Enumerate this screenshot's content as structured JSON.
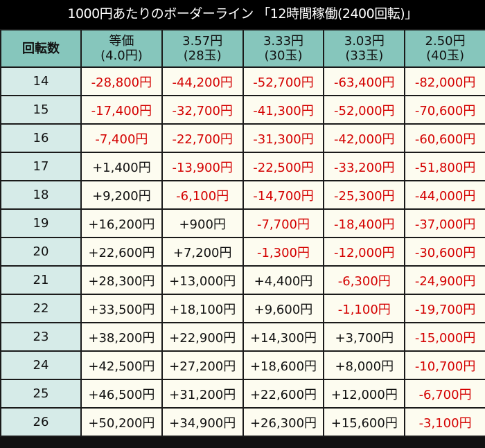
{
  "title": "1000円あたりのボーダーライン 「12時間稼働(2400回転)」",
  "colors": {
    "header_bg": "#86c6bc",
    "row_label_bg": "#d6ebe8",
    "cell_bg": "#fdfcf0",
    "negative": "#d40000",
    "positive": "#111111",
    "title_bg": "#000000"
  },
  "header": {
    "row_label": "回転数",
    "columns": [
      {
        "line1": "等価",
        "line2": "(4.0円)"
      },
      {
        "line1": "3.57円",
        "line2": "(28玉)"
      },
      {
        "line1": "3.33円",
        "line2": "(30玉)"
      },
      {
        "line1": "3.03円",
        "line2": "(33玉)"
      },
      {
        "line1": "2.50円",
        "line2": "(40玉)"
      }
    ]
  },
  "rows": [
    {
      "spins": "14",
      "values": [
        "-28,800円",
        "-44,200円",
        "-52,700円",
        "-63,400円",
        "-82,000円"
      ]
    },
    {
      "spins": "15",
      "values": [
        "-17,400円",
        "-32,700円",
        "-41,300円",
        "-52,000円",
        "-70,600円"
      ]
    },
    {
      "spins": "16",
      "values": [
        "-7,400円",
        "-22,700円",
        "-31,300円",
        "-42,000円",
        "-60,600円"
      ]
    },
    {
      "spins": "17",
      "values": [
        "+1,400円",
        "-13,900円",
        "-22,500円",
        "-33,200円",
        "-51,800円"
      ]
    },
    {
      "spins": "18",
      "values": [
        "+9,200円",
        "-6,100円",
        "-14,700円",
        "-25,300円",
        "-44,000円"
      ]
    },
    {
      "spins": "19",
      "values": [
        "+16,200円",
        "+900円",
        "-7,700円",
        "-18,400円",
        "-37,000円"
      ]
    },
    {
      "spins": "20",
      "values": [
        "+22,600円",
        "+7,200円",
        "-1,300円",
        "-12,000円",
        "-30,600円"
      ]
    },
    {
      "spins": "21",
      "values": [
        "+28,300円",
        "+13,000円",
        "+4,400円",
        "-6,300円",
        "-24,900円"
      ]
    },
    {
      "spins": "22",
      "values": [
        "+33,500円",
        "+18,100円",
        "+9,600円",
        "-1,100円",
        "-19,700円"
      ]
    },
    {
      "spins": "23",
      "values": [
        "+38,200円",
        "+22,900円",
        "+14,300円",
        "+3,700円",
        "-15,000円"
      ]
    },
    {
      "spins": "24",
      "values": [
        "+42,500円",
        "+27,200円",
        "+18,600円",
        "+8,000円",
        "-10,700円"
      ]
    },
    {
      "spins": "25",
      "values": [
        "+46,500円",
        "+31,200円",
        "+22,600円",
        "+12,000円",
        "-6,700円"
      ]
    },
    {
      "spins": "26",
      "values": [
        "+50,200円",
        "+34,900円",
        "+26,300円",
        "+15,600円",
        "-3,100円"
      ]
    }
  ]
}
